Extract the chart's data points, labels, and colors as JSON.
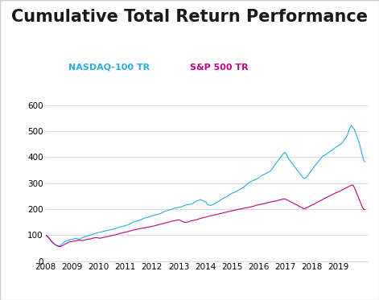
{
  "title": "Cumulative Total Return Performance",
  "nasdaq_label": "NASDAQ-100 TR",
  "sp500_label": "S&P 500 TR",
  "nasdaq_color": "#29ABE2",
  "sp500_color": "#BE0081",
  "title_color": "#1a1a1a",
  "ylim": [
    0,
    600
  ],
  "yticks": [
    0,
    100,
    200,
    300,
    400,
    500,
    600
  ],
  "xtick_labels": [
    "2008",
    "2009",
    "2010",
    "2011",
    "2012",
    "2013",
    "2014",
    "2015",
    "2016",
    "2017",
    "2018",
    "2019"
  ],
  "background_color": "#ffffff",
  "grid_color": "#cccccc",
  "border_color": "#cccccc",
  "title_fontsize": 15,
  "legend_fontsize": 8,
  "tick_fontsize": 7.5,
  "nasdaq_data": [
    100,
    98,
    95,
    90,
    85,
    80,
    75,
    72,
    68,
    65,
    62,
    60,
    58,
    57,
    58,
    60,
    63,
    66,
    70,
    73,
    75,
    77,
    78,
    79,
    80,
    82,
    83,
    84,
    85,
    86,
    87,
    88,
    88,
    87,
    86,
    87,
    88,
    90,
    92,
    93,
    94,
    95,
    97,
    98,
    100,
    101,
    102,
    103,
    104,
    105,
    106,
    107,
    108,
    109,
    110,
    111,
    112,
    113,
    114,
    115,
    116,
    117,
    118,
    119,
    120,
    121,
    122,
    123,
    124,
    125,
    126,
    127,
    128,
    129,
    130,
    131,
    132,
    133,
    134,
    135,
    136,
    137,
    138,
    139,
    140,
    141,
    143,
    145,
    147,
    149,
    150,
    151,
    152,
    153,
    154,
    155,
    156,
    157,
    158,
    160,
    162,
    164,
    165,
    166,
    167,
    168,
    169,
    170,
    171,
    172,
    173,
    174,
    175,
    176,
    177,
    178,
    179,
    180,
    181,
    183,
    185,
    187,
    189,
    190,
    191,
    192,
    193,
    194,
    195,
    196,
    197,
    198,
    200,
    202,
    203,
    204,
    205,
    206,
    207,
    208,
    210,
    212,
    213,
    215,
    217,
    218,
    219,
    220,
    221,
    222,
    223,
    225,
    227,
    230,
    232,
    234,
    235,
    236,
    237,
    238,
    237,
    235,
    233,
    232,
    230,
    228,
    220,
    218,
    217,
    216,
    217,
    218,
    220,
    222,
    224,
    226,
    228,
    230,
    232,
    235,
    238,
    240,
    242,
    244,
    246,
    248,
    250,
    253,
    255,
    257,
    260,
    262,
    264,
    265,
    267,
    269,
    271,
    273,
    275,
    277,
    279,
    281,
    284,
    287,
    290,
    293,
    296,
    299,
    302,
    305,
    308,
    310,
    312,
    314,
    315,
    316,
    318,
    320,
    322,
    325,
    328,
    330,
    332,
    334,
    336,
    338,
    340,
    342,
    344,
    346,
    348,
    350,
    355,
    360,
    365,
    370,
    375,
    380,
    385,
    390,
    395,
    400,
    405,
    410,
    415,
    418,
    420,
    415,
    408,
    400,
    395,
    390,
    385,
    380,
    375,
    370,
    365,
    360,
    355,
    350,
    345,
    340,
    335,
    330,
    325,
    322,
    320,
    322,
    325,
    330,
    335,
    340,
    345,
    350,
    355,
    360,
    365,
    370,
    375,
    380,
    385,
    390,
    395,
    400,
    405,
    408,
    410,
    412,
    415,
    418,
    420,
    422,
    425,
    428,
    430,
    432,
    435,
    438,
    440,
    442,
    445,
    448,
    450,
    452,
    455,
    460,
    465,
    470,
    475,
    480,
    490,
    500,
    510,
    520,
    525,
    520,
    515,
    510,
    500,
    490,
    480,
    470,
    460,
    445,
    430,
    415,
    400,
    390,
    385
  ],
  "sp500_data": [
    100,
    97,
    94,
    90,
    85,
    80,
    76,
    72,
    68,
    65,
    62,
    60,
    58,
    57,
    58,
    60,
    62,
    64,
    66,
    68,
    70,
    72,
    73,
    74,
    75,
    76,
    77,
    78,
    79,
    80,
    81,
    82,
    82,
    81,
    80,
    81,
    82,
    83,
    84,
    85,
    86,
    87,
    88,
    89,
    90,
    91,
    92,
    93,
    93,
    92,
    91,
    90,
    91,
    92,
    93,
    95,
    96,
    97,
    98,
    99,
    100,
    101,
    102,
    103,
    104,
    105,
    106,
    107,
    108,
    109,
    110,
    111,
    112,
    113,
    114,
    115,
    116,
    117,
    118,
    119,
    120,
    121,
    122,
    123,
    124,
    125,
    126,
    127,
    128,
    129,
    130,
    131,
    132,
    133,
    134,
    135,
    136,
    137,
    138,
    139,
    140,
    141,
    142,
    143,
    144,
    145,
    146,
    147,
    148,
    149,
    150,
    151,
    152,
    153,
    154,
    155,
    156,
    157,
    158,
    159,
    160,
    161,
    162,
    163,
    164,
    165,
    163,
    161,
    160,
    158,
    156,
    155,
    156,
    157,
    158,
    160,
    161,
    162,
    163,
    164,
    165,
    166,
    167,
    168,
    170,
    171,
    172,
    173,
    174,
    175,
    176,
    177,
    178,
    179,
    180,
    181,
    182,
    183,
    184,
    185,
    186,
    187,
    188,
    189,
    190,
    191,
    192,
    193,
    194,
    195,
    196,
    197,
    198,
    199,
    200,
    201,
    202,
    203,
    204,
    205,
    206,
    207,
    208,
    209,
    210,
    211,
    212,
    213,
    214,
    215,
    216,
    217,
    218,
    219,
    220,
    221,
    222,
    223,
    224,
    225,
    226,
    227,
    228,
    229,
    230,
    231,
    232,
    233,
    234,
    235,
    236,
    237,
    238,
    239,
    240,
    241,
    242,
    243,
    244,
    245,
    246,
    247,
    248,
    249,
    250,
    248,
    246,
    244,
    242,
    240,
    238,
    236,
    234,
    232,
    230,
    228,
    225,
    222,
    220,
    218,
    215,
    213,
    210,
    212,
    214,
    216,
    218,
    220,
    222,
    224,
    226,
    228,
    230,
    232,
    234,
    236,
    238,
    240,
    242,
    244,
    246,
    248,
    250,
    252,
    254,
    256,
    258,
    260,
    262,
    264,
    266,
    268,
    270,
    272,
    274,
    276,
    278,
    280,
    282,
    284,
    286,
    288,
    290,
    292,
    294,
    296,
    298,
    300,
    298,
    290,
    280,
    270,
    260,
    250,
    240,
    230,
    220,
    210,
    205,
    205
  ]
}
